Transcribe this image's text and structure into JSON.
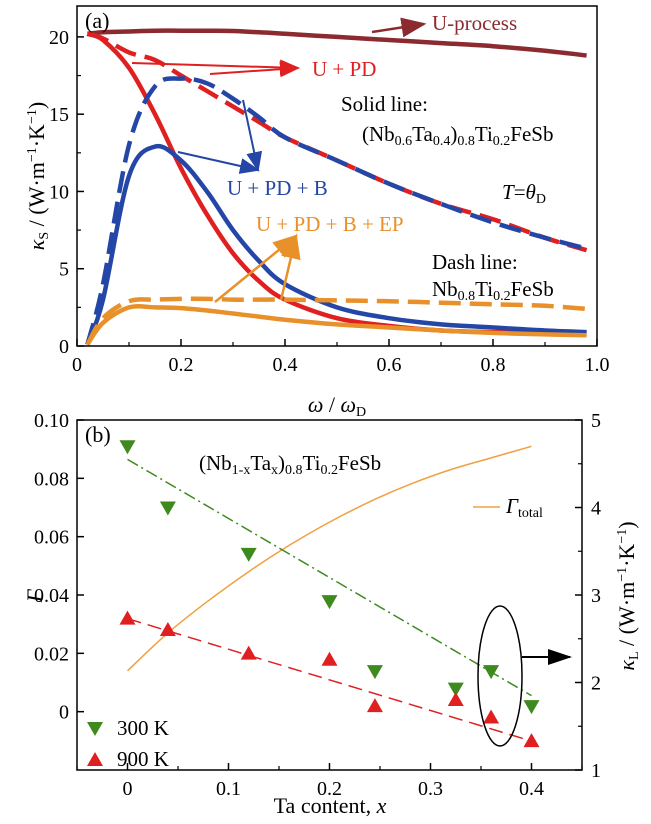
{
  "chart_data": [
    {
      "type": "line",
      "panel_label": "(a)",
      "xlabel": "ω / ωD",
      "ylabel": "κS / (W·m−1·K−1)",
      "xlim": [
        0,
        1.0
      ],
      "ylim": [
        0,
        22
      ],
      "xticks": [
        "0",
        "0.2",
        "0.4",
        "0.6",
        "0.8",
        "1.0"
      ],
      "yticks": [
        "0",
        "5",
        "10",
        "15",
        "20"
      ],
      "x": [
        0.02,
        0.05,
        0.1,
        0.15,
        0.2,
        0.25,
        0.3,
        0.35,
        0.4,
        0.5,
        0.6,
        0.7,
        0.8,
        0.9,
        0.98
      ],
      "series": [
        {
          "style": "solid",
          "color": "#8b2a2f",
          "values": [
            20.2,
            20.3,
            20.35,
            20.4,
            20.4,
            20.4,
            20.38,
            20.3,
            20.2,
            20.0,
            19.8,
            19.6,
            19.4,
            19.1,
            18.8
          ]
        },
        {
          "style": "solid",
          "color": "#e02020",
          "values": [
            20.2,
            19.8,
            18.0,
            15.0,
            11.5,
            8.5,
            6.0,
            4.2,
            3.0,
            1.8,
            1.3,
            1.0,
            0.9,
            0.85,
            0.8
          ]
        },
        {
          "style": "solid",
          "color": "#2446a6",
          "values": [
            0.1,
            3.0,
            11.0,
            12.9,
            12.0,
            10.0,
            7.5,
            5.5,
            4.0,
            2.5,
            1.8,
            1.4,
            1.2,
            1.0,
            0.9
          ]
        },
        {
          "style": "solid",
          "color": "#e8902a",
          "values": [
            0.1,
            1.5,
            2.5,
            2.5,
            2.45,
            2.3,
            2.1,
            1.9,
            1.7,
            1.4,
            1.2,
            1.0,
            0.85,
            0.75,
            0.7
          ]
        },
        {
          "style": "dashed",
          "color": "#e02020",
          "values": [
            20.2,
            19.9,
            19.0,
            18.5,
            17.5,
            16.5,
            15.5,
            14.5,
            13.5,
            12.0,
            10.5,
            9.2,
            8.2,
            7.0,
            6.2
          ]
        },
        {
          "style": "dashed",
          "color": "#2446a6",
          "values": [
            0.1,
            4.0,
            13.0,
            16.8,
            17.3,
            17.0,
            16.0,
            14.8,
            13.5,
            12.0,
            10.5,
            9.2,
            8.0,
            7.0,
            6.3
          ]
        },
        {
          "style": "dashed",
          "color": "#e8902a",
          "values": [
            0.1,
            1.8,
            2.9,
            3.0,
            3.05,
            3.05,
            3.0,
            3.0,
            3.0,
            2.95,
            2.9,
            2.8,
            2.7,
            2.6,
            2.4
          ]
        }
      ],
      "annotations": {
        "u_process": "U-process",
        "u_pd": "U + PD",
        "u_pd_b": "U + PD + B",
        "u_pd_b_ep": "U + PD + B + EP",
        "solid_line": "Solid line:",
        "solid_formula": "(Nb0.6Ta0.4)0.8Ti0.2FeSb",
        "t_theta": "T=θD",
        "dash_line": "Dash line:",
        "dash_formula": "Nb0.8Ti0.2FeSb"
      }
    },
    {
      "type": "scatter",
      "panel_label": "(b)",
      "title": "(Nb1-xTax)0.8Ti0.2FeSb",
      "xlabel": "Ta content, x",
      "ylabel_left": "Γ",
      "ylabel_right": "κL / (W·m−1·K−1)",
      "xlim": [
        -0.05,
        0.45
      ],
      "ylim_left": [
        -0.02,
        0.1
      ],
      "ylim_right": [
        1,
        5
      ],
      "xticks": [
        "0",
        "0.1",
        "0.2",
        "0.3",
        "0.4"
      ],
      "yticks_left": [
        "0",
        "0.02",
        "0.04",
        "0.06",
        "0.08",
        "0.10"
      ],
      "yticks_right": [
        "1",
        "2",
        "3",
        "4",
        "5"
      ],
      "gamma_total": {
        "name": "Γtotal",
        "color": "#f0a040",
        "x": [
          0,
          0.04,
          0.08,
          0.12,
          0.16,
          0.2,
          0.24,
          0.28,
          0.32,
          0.36,
          0.4
        ],
        "values": [
          0.014,
          0.027,
          0.038,
          0.048,
          0.057,
          0.065,
          0.072,
          0.078,
          0.083,
          0.087,
          0.091
        ]
      },
      "series": [
        {
          "name": "300 K",
          "marker": "triangle-down",
          "color": "#3e8a1e",
          "x": [
            0,
            0.04,
            0.12,
            0.2,
            0.245,
            0.325,
            0.36,
            0.4
          ],
          "values": [
            4.7,
            4.0,
            3.47,
            2.93,
            2.13,
            1.93,
            2.13,
            1.73
          ],
          "fit": [
            4.55,
            1.85
          ]
        },
        {
          "name": "900 K",
          "marker": "triangle-up",
          "color": "#e02020",
          "x": [
            0,
            0.04,
            0.12,
            0.2,
            0.245,
            0.325,
            0.36,
            0.4
          ],
          "values": [
            2.73,
            2.6,
            2.33,
            2.26,
            1.73,
            1.8,
            1.6,
            1.33
          ],
          "fit": [
            2.73,
            1.33
          ]
        }
      ]
    }
  ]
}
